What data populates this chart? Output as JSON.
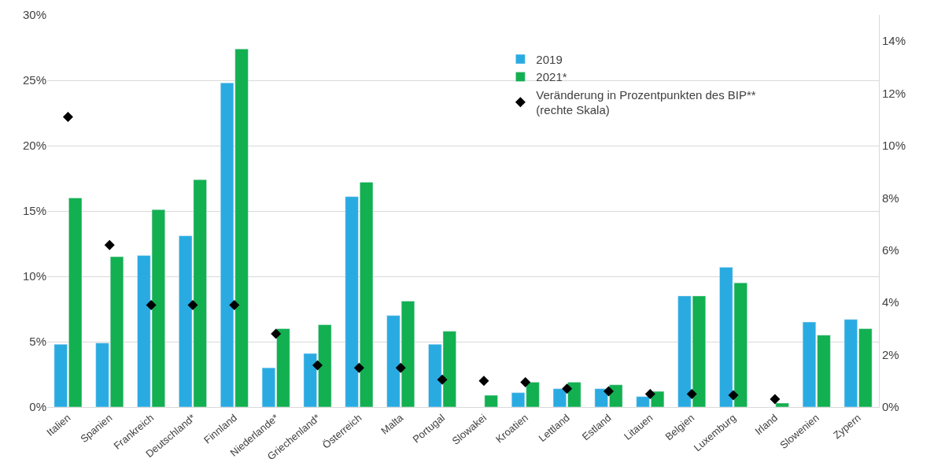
{
  "chart_data": {
    "type": "bar",
    "categories": [
      "Italien",
      "Spanien",
      "Frankreich",
      "Deutschland*",
      "Finnland",
      "Niederlande*",
      "Griechenland*",
      "Österreich",
      "Malta",
      "Portugal",
      "Slowakei",
      "Kroatien",
      "Lettland",
      "Estland",
      "Litauen",
      "Belgien",
      "Luxemburg",
      "Irland",
      "Slowenien",
      "Zypern"
    ],
    "series": [
      {
        "name": "2019",
        "color": "#29abe2",
        "values": [
          4.8,
          4.9,
          11.6,
          13.1,
          24.8,
          3.0,
          4.1,
          16.1,
          7.0,
          4.8,
          null,
          1.1,
          1.4,
          1.4,
          0.8,
          8.5,
          10.7,
          null,
          6.5,
          6.7
        ]
      },
      {
        "name": "2021*",
        "color": "#12b050",
        "values": [
          16.0,
          11.5,
          15.1,
          17.4,
          27.4,
          6.0,
          6.3,
          17.2,
          8.1,
          5.8,
          0.9,
          1.9,
          1.9,
          1.7,
          1.2,
          8.5,
          9.5,
          0.3,
          5.5,
          6.0
        ]
      },
      {
        "name": "Veränderung in Prozentpunkten des BIP**\n(rechte Skala)",
        "type": "scatter",
        "axis": "y2",
        "marker": "diamond",
        "color": "#000000",
        "values": [
          11.1,
          6.2,
          3.9,
          3.9,
          3.9,
          2.8,
          1.6,
          1.5,
          1.5,
          1.05,
          1.0,
          0.95,
          0.7,
          0.6,
          0.5,
          0.5,
          0.45,
          0.3,
          null,
          null
        ]
      }
    ],
    "ylim": [
      0,
      30
    ],
    "yticks": [
      {
        "value": 0,
        "label": "0%"
      },
      {
        "value": 5,
        "label": "5%"
      },
      {
        "value": 10,
        "label": "10%"
      },
      {
        "value": 15,
        "label": "15%"
      },
      {
        "value": 20,
        "label": "20%"
      },
      {
        "value": 25,
        "label": "25%"
      },
      {
        "value": 30,
        "label": "30%"
      }
    ],
    "y2lim": [
      0,
      15
    ],
    "y2ticks": [
      {
        "value": 0,
        "label": "0%"
      },
      {
        "value": 2,
        "label": "2%"
      },
      {
        "value": 4,
        "label": "4%"
      },
      {
        "value": 6,
        "label": "6%"
      },
      {
        "value": 8,
        "label": "8%"
      },
      {
        "value": 10,
        "label": "10%"
      },
      {
        "value": 12,
        "label": "12%"
      },
      {
        "value": 14,
        "label": "14%"
      }
    ],
    "grid": "y",
    "legend": "top"
  }
}
